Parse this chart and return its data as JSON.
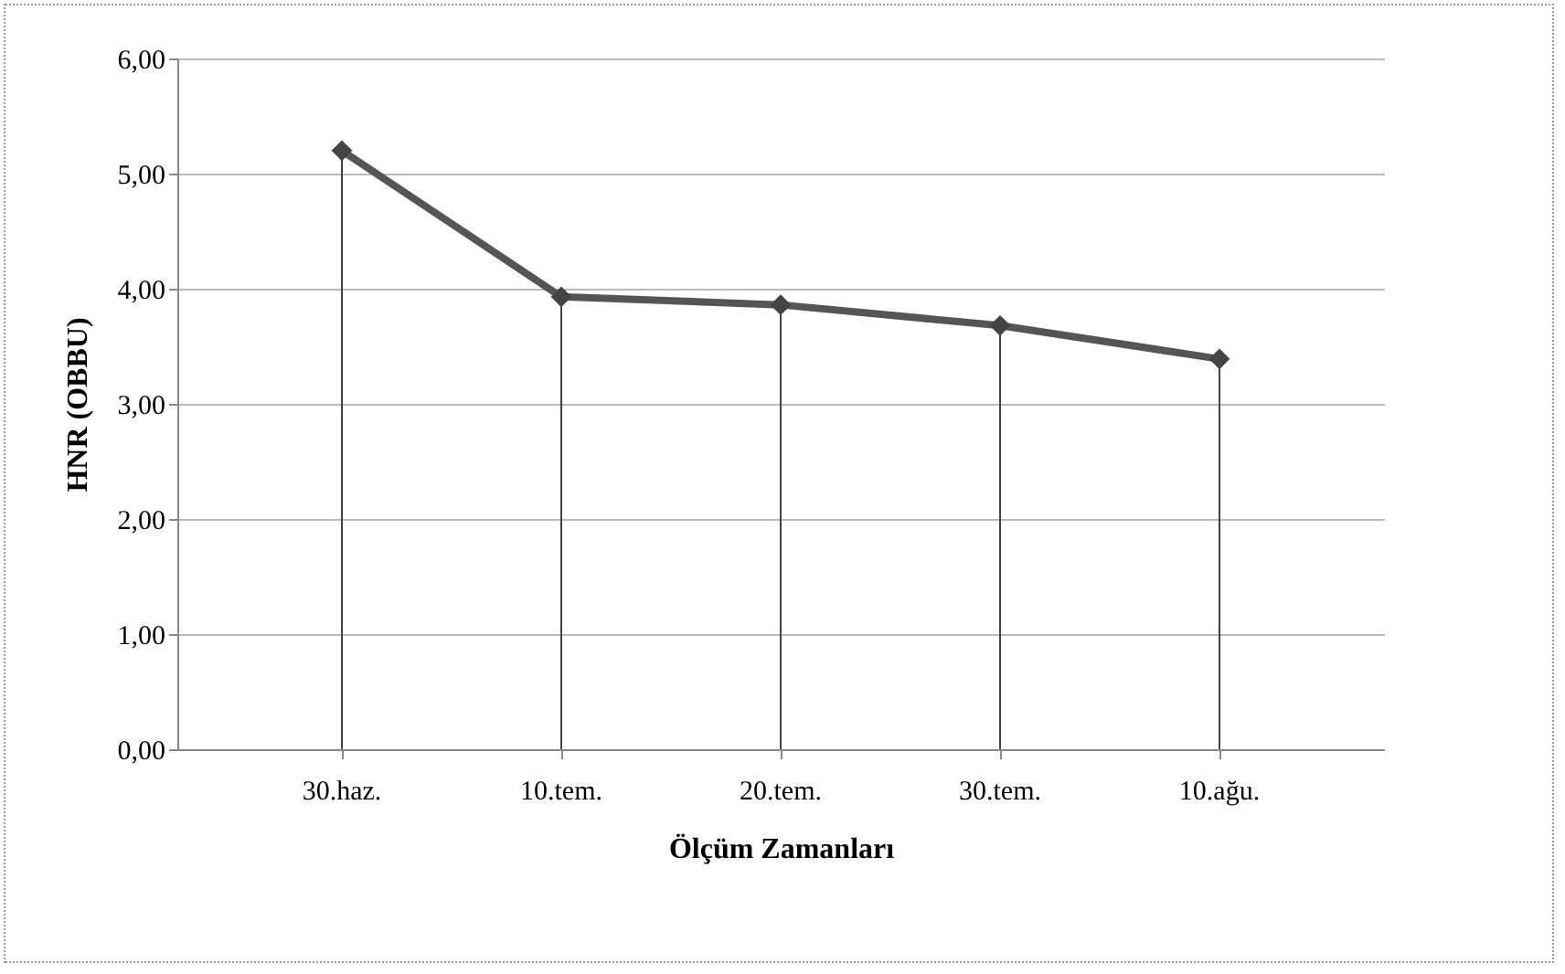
{
  "chart_data": {
    "type": "line",
    "xlabel": "Ölçüm Zamanları",
    "ylabel": "HNR (OBBU)",
    "categories": [
      "30.haz.",
      "10.tem.",
      "20.tem.",
      "30.tem.",
      "10.ağu."
    ],
    "series": [
      {
        "type": "lollipop",
        "color": "#444444",
        "marker": "diamond",
        "values": [
          5.2,
          3.93,
          3.86,
          3.68,
          3.39
        ]
      },
      {
        "color": "#555555",
        "marker": "none",
        "values": [
          5.2,
          3.93,
          3.86,
          3.68,
          3.39
        ]
      }
    ],
    "ylim": [
      0,
      6
    ],
    "yticks": [
      {
        "value": 0,
        "label": "0,00"
      },
      {
        "value": 1,
        "label": "1,00"
      },
      {
        "value": 2,
        "label": "2,00"
      },
      {
        "value": 3,
        "label": "3,00"
      },
      {
        "value": 4,
        "label": "4,00"
      },
      {
        "value": 5,
        "label": "5,00"
      },
      {
        "value": 6,
        "label": "6,00"
      }
    ],
    "grid": "y",
    "line_style": "solid",
    "legend": false
  }
}
